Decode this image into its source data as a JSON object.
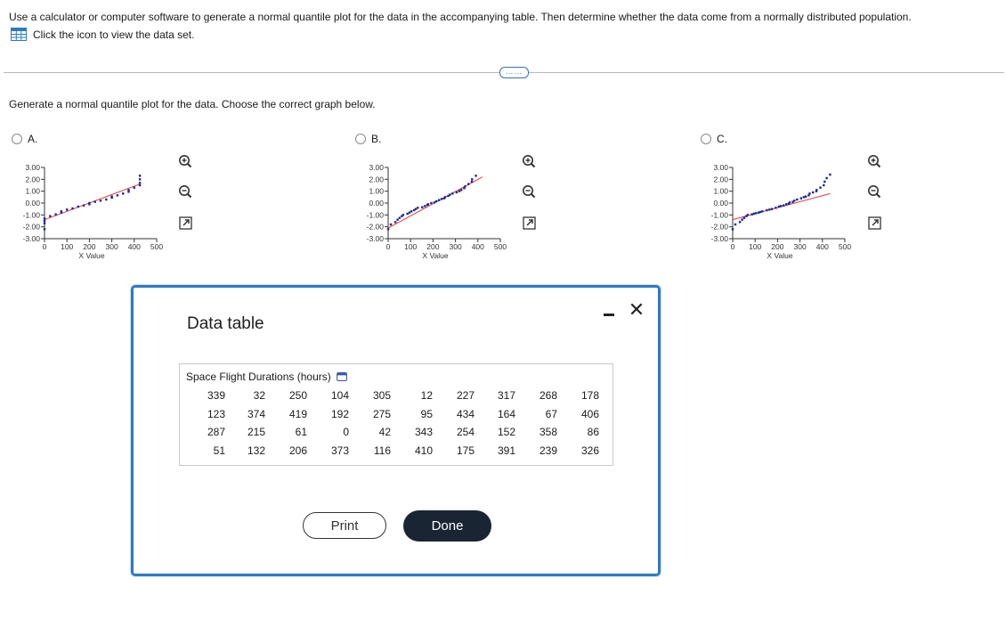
{
  "question": {
    "text": "Use a calculator or computer software to generate a normal quantile plot for the data in the accompanying table. Then determine whether the data come from a normally distributed population.",
    "dataset_link": "Click the icon to view the data set."
  },
  "more_button": "……",
  "prompt": "Generate a normal quantile plot for the data. Choose the correct graph below.",
  "options": [
    {
      "label": "A."
    },
    {
      "label": "B."
    },
    {
      "label": "C."
    }
  ],
  "chart_data": [
    {
      "type": "scatter",
      "option": "A",
      "xlabel": "X Value",
      "xticks": [
        "0",
        "100",
        "200",
        "300",
        "400",
        "500"
      ],
      "yticks": [
        "3.00",
        "2.00",
        "1.00",
        "0.00",
        "-1.00",
        "-2.00",
        "-3.00"
      ],
      "xlim": [
        0,
        500
      ],
      "ylim": [
        -3,
        3
      ],
      "points": [
        [
          0,
          -2.2
        ],
        [
          0,
          -1.7
        ],
        [
          0,
          -1.5
        ],
        [
          0,
          -1.3
        ],
        [
          25,
          -1.1
        ],
        [
          50,
          -0.95
        ],
        [
          75,
          -0.8
        ],
        [
          75,
          -0.7
        ],
        [
          100,
          -0.55
        ],
        [
          125,
          -0.45
        ],
        [
          150,
          -0.3
        ],
        [
          175,
          -0.2
        ],
        [
          200,
          -0.1
        ],
        [
          200,
          0.0
        ],
        [
          225,
          0.1
        ],
        [
          250,
          0.2
        ],
        [
          275,
          0.3
        ],
        [
          300,
          0.45
        ],
        [
          300,
          0.55
        ],
        [
          325,
          0.65
        ],
        [
          350,
          0.8
        ],
        [
          375,
          0.95
        ],
        [
          375,
          1.1
        ],
        [
          400,
          1.3
        ],
        [
          425,
          1.5
        ],
        [
          425,
          1.7
        ],
        [
          425,
          2.0
        ],
        [
          425,
          2.3
        ]
      ],
      "line": [
        [
          0,
          -1.4
        ],
        [
          425,
          1.6
        ]
      ]
    },
    {
      "type": "scatter",
      "option": "B",
      "xlabel": "X Value",
      "xticks": [
        "0",
        "100",
        "200",
        "300",
        "400",
        "500"
      ],
      "yticks": [
        "3.00",
        "2.00",
        "1.00",
        "0.00",
        "-1.00",
        "-2.00",
        "-3.00"
      ],
      "xlim": [
        0,
        500
      ],
      "ylim": [
        -3,
        3
      ],
      "points": [
        [
          0,
          -2.2
        ],
        [
          12,
          -1.8
        ],
        [
          32,
          -1.6
        ],
        [
          42,
          -1.4
        ],
        [
          51,
          -1.25
        ],
        [
          61,
          -1.1
        ],
        [
          67,
          -1.0
        ],
        [
          86,
          -0.9
        ],
        [
          95,
          -0.8
        ],
        [
          104,
          -0.7
        ],
        [
          116,
          -0.6
        ],
        [
          123,
          -0.5
        ],
        [
          132,
          -0.4
        ],
        [
          152,
          -0.35
        ],
        [
          164,
          -0.25
        ],
        [
          175,
          -0.15
        ],
        [
          178,
          -0.1
        ],
        [
          192,
          0.0
        ],
        [
          206,
          0.05
        ],
        [
          215,
          0.15
        ],
        [
          227,
          0.25
        ],
        [
          239,
          0.35
        ],
        [
          250,
          0.4
        ],
        [
          254,
          0.5
        ],
        [
          268,
          0.6
        ],
        [
          275,
          0.7
        ],
        [
          287,
          0.8
        ],
        [
          305,
          0.9
        ],
        [
          317,
          1.0
        ],
        [
          326,
          1.1
        ],
        [
          339,
          1.25
        ],
        [
          343,
          1.4
        ],
        [
          358,
          1.6
        ],
        [
          373,
          1.8
        ],
        [
          374,
          2.0
        ],
        [
          391,
          2.3
        ]
      ],
      "line": [
        [
          0,
          -2.1
        ],
        [
          420,
          2.2
        ]
      ]
    },
    {
      "type": "scatter",
      "option": "C",
      "xlabel": "X Value",
      "xticks": [
        "0",
        "100",
        "200",
        "300",
        "400",
        "500"
      ],
      "yticks": [
        "3.00",
        "2.00",
        "1.00",
        "0.00",
        "-1.00",
        "-2.00",
        "-3.00"
      ],
      "xlim": [
        0,
        500
      ],
      "ylim": [
        -3,
        3
      ],
      "points": [
        [
          0,
          -2.2
        ],
        [
          12,
          -1.8
        ],
        [
          32,
          -1.6
        ],
        [
          42,
          -1.4
        ],
        [
          51,
          -1.25
        ],
        [
          61,
          -1.1
        ],
        [
          67,
          -1.0
        ],
        [
          86,
          -0.95
        ],
        [
          95,
          -0.9
        ],
        [
          104,
          -0.85
        ],
        [
          116,
          -0.8
        ],
        [
          123,
          -0.75
        ],
        [
          132,
          -0.7
        ],
        [
          152,
          -0.6
        ],
        [
          164,
          -0.55
        ],
        [
          175,
          -0.5
        ],
        [
          192,
          -0.4
        ],
        [
          206,
          -0.3
        ],
        [
          215,
          -0.25
        ],
        [
          227,
          -0.2
        ],
        [
          239,
          -0.1
        ],
        [
          250,
          -0.05
        ],
        [
          254,
          0.05
        ],
        [
          268,
          0.1
        ],
        [
          275,
          0.2
        ],
        [
          287,
          0.3
        ],
        [
          305,
          0.4
        ],
        [
          317,
          0.5
        ],
        [
          326,
          0.55
        ],
        [
          339,
          0.65
        ],
        [
          343,
          0.8
        ],
        [
          358,
          0.9
        ],
        [
          373,
          1.0
        ],
        [
          374,
          1.1
        ],
        [
          391,
          1.3
        ],
        [
          406,
          1.5
        ],
        [
          410,
          1.8
        ],
        [
          419,
          2.1
        ],
        [
          434,
          2.4
        ]
      ],
      "line": [
        [
          0,
          -1.4
        ],
        [
          434,
          0.8
        ]
      ]
    }
  ],
  "modal": {
    "title": "Data table",
    "caption": "Space Flight Durations (hours)",
    "rows": [
      [
        "339",
        "32",
        "250",
        "104",
        "305",
        "12",
        "227",
        "317",
        "268",
        "178"
      ],
      [
        "123",
        "374",
        "419",
        "192",
        "275",
        "95",
        "434",
        "164",
        "67",
        "406"
      ],
      [
        "287",
        "215",
        "61",
        "0",
        "42",
        "343",
        "254",
        "152",
        "358",
        "86"
      ],
      [
        "51",
        "132",
        "206",
        "373",
        "116",
        "410",
        "175",
        "391",
        "239",
        "326"
      ]
    ],
    "print_label": "Print",
    "done_label": "Done"
  },
  "colors": {
    "accent": "#2f79c4",
    "point": "#1a2a8c",
    "fit_line": "#e23b3b",
    "done_bg": "#1a2533"
  }
}
